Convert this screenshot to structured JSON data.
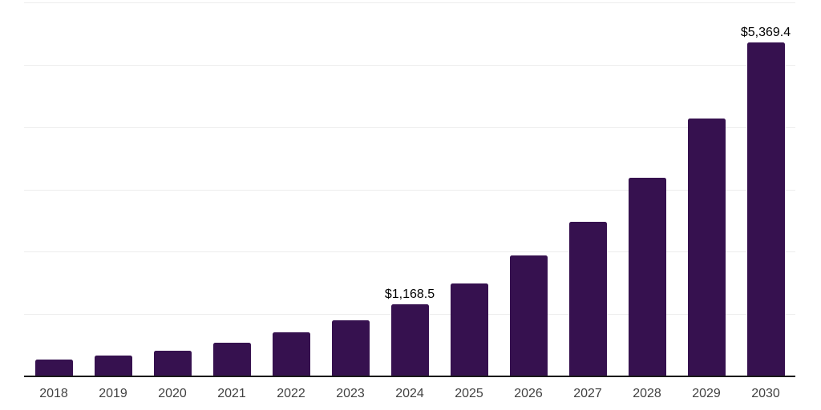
{
  "chart_data": {
    "type": "bar",
    "title": "",
    "xlabel": "",
    "ylabel": "",
    "categories": [
      "2018",
      "2019",
      "2020",
      "2021",
      "2022",
      "2023",
      "2024",
      "2025",
      "2026",
      "2027",
      "2028",
      "2029",
      "2030"
    ],
    "values": [
      281,
      342,
      431,
      549,
      715,
      912,
      1168.5,
      1504,
      1950,
      2492,
      3205,
      4151,
      5369.4
    ],
    "data_labels": [
      "",
      "",
      "",
      "",
      "",
      "",
      "$1,168.5",
      "",
      "",
      "",
      "",
      "",
      "$5,369.4"
    ],
    "ylim": [
      0,
      6000
    ],
    "gridline_values": [
      1000,
      2000,
      3000,
      4000,
      5000,
      6000
    ],
    "grid": "horizontal",
    "legend": "none",
    "colors": {
      "bar": "#36114F",
      "axis_line": "#1a1a1a",
      "gridline": "#ededed",
      "tick_label": "#424242",
      "data_label": "#000000",
      "background": "#ffffff"
    }
  }
}
